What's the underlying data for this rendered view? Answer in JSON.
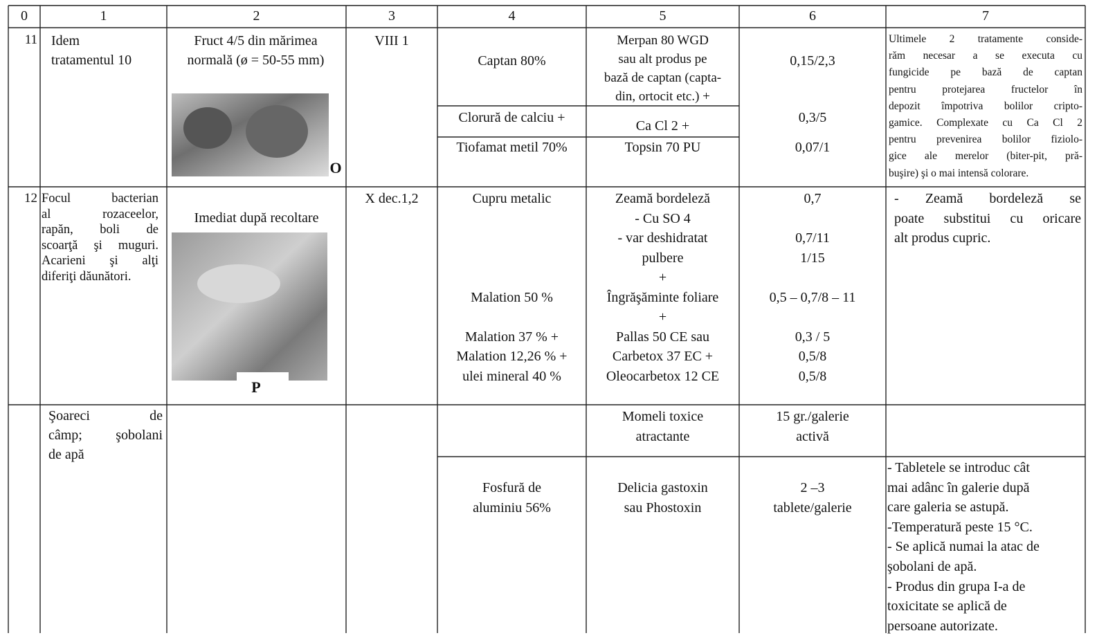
{
  "table": {
    "header": [
      "0",
      "1",
      "2",
      "3",
      "4",
      "5",
      "6",
      "7"
    ],
    "rows": [
      {
        "number": "11",
        "pest": [
          "Idem",
          "tratamentul 10"
        ],
        "stage": [
          "Fruct 4/5 din mărimea",
          "normală (ø = 50-55 mm)"
        ],
        "image_label": "O",
        "period": "VIII 1",
        "treatments": [
          {
            "substance": [
              "Captan 80%"
            ],
            "product": [
              "Merpan 80 WGD",
              "sau alt produs pe",
              "bază de captan (capta-",
              "din, ortocit etc.) +"
            ],
            "dose": [
              "0,15/2,3"
            ]
          },
          {
            "substance": [
              "Clorură de calciu +"
            ],
            "product": [
              "Ca Cl 2      +"
            ],
            "dose": [
              "0,3/5"
            ]
          },
          {
            "substance": [
              "Tiofamat metil 70%"
            ],
            "product": [
              "Topsin 70 PU"
            ],
            "dose": [
              "0,07/1"
            ]
          }
        ],
        "notes": [
          "Ultimele 2 tratamente conside-",
          "răm necesar a se executa cu",
          "fungicide pe bază de captan",
          "pentru protejarea fructelor în",
          "depozit împotriva bolilor cripto-",
          "gamice. Complexate cu Ca Cl 2",
          "pentru prevenirea bolilor fiziolo-",
          "gice ale merelor (biter-pit, pră-",
          "buşire) şi o mai intensă colorare."
        ]
      },
      {
        "number": "12",
        "pest": [
          "Focul bacterian",
          "al rozaceelor,",
          "rapăn, boli de",
          "scoarţă şi muguri.",
          "Acarieni şi alţi",
          "diferiţi dăunători."
        ],
        "stage": [
          "Imediat după recoltare"
        ],
        "image_label": "P",
        "period": "X dec.1,2",
        "lines": [
          {
            "substance": "Cupru metalic",
            "product": "Zeamă bordeleză",
            "dose": "0,7"
          },
          {
            "product": "- Cu SO 4"
          },
          {
            "product": "- var deshidratat",
            "dose": "0,7/11"
          },
          {
            "product": "pulbere",
            "dose": "1/15"
          },
          {
            "product": "+"
          },
          {
            "substance": "Malation 50 %",
            "product": "Îngrăşăminte foliare",
            "dose": "0,5 – 0,7/8 – 11"
          },
          {
            "product": "+"
          },
          {
            "substance": "Malation 37 % +",
            "product": "Pallas 50 CE   sau",
            "dose": "0,3 / 5"
          },
          {
            "substance": "Malation 12,26 % +",
            "product": "Carbetox 37 EC   +",
            "dose": "0,5/8"
          },
          {
            "substance": "ulei mineral 40 %",
            "product": "Oleocarbetox 12 CE",
            "dose": "0,5/8"
          }
        ],
        "notes": [
          "- Zeamă bordeleză se",
          "poate substitui cu oricare",
          "alt produs cupric."
        ]
      },
      {
        "pest": [
          "Şoareci de",
          "câmp; şobolani",
          "de apă"
        ],
        "treatments": [
          {
            "product": [
              "Momeli toxice",
              "atractante"
            ],
            "dose": [
              "15 gr./galerie",
              "activă"
            ]
          },
          {
            "substance": [
              "Fosfură de",
              "aluminiu 56%"
            ],
            "product": [
              "Delicia gastoxin",
              "sau Phostoxin"
            ],
            "dose": [
              "2 –3",
              "tablete/galerie"
            ],
            "notes": [
              "- Tabletele se introduc cât",
              "mai adânc în galerie după",
              "care galeria se astupă.",
              "-Temperatură peste 15 °C.",
              "- Se aplică numai la atac de",
              "şobolani de apă.",
              "- Produs din grupa I-a de",
              "toxicitate se aplică de",
              "persoane autorizate."
            ]
          }
        ]
      }
    ]
  }
}
